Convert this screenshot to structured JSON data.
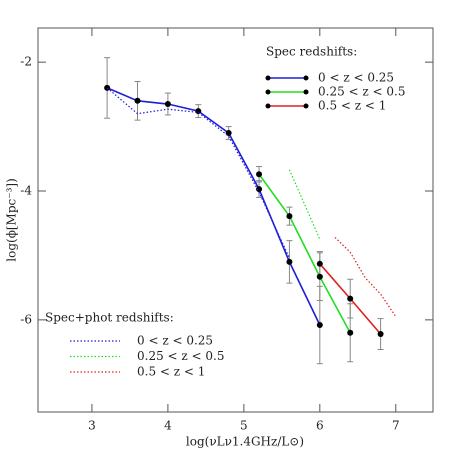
{
  "chart_data": {
    "type": "line",
    "x_label": "log(νLν1.4GHz/L⊙)",
    "y_label": "log(ϕ[Mpc⁻³])",
    "xlim": [
      2.29,
      7.49
    ],
    "ylim": [
      -7.43,
      -1.47
    ],
    "xticks": [
      3,
      4,
      5,
      6,
      7
    ],
    "yticks": [
      -6,
      -4,
      -2
    ],
    "legend_titles": [
      "Spec redshifts:",
      "Spec+phot redshifts:"
    ],
    "series": [
      {
        "name": "0 < z < 0.25",
        "color": "#1f1fd6",
        "style": "solid",
        "legend": 0,
        "x": [
          3.2,
          3.6,
          4.0,
          4.4,
          4.8,
          5.2,
          5.6,
          6.0
        ],
        "values": [
          -2.4,
          -2.6,
          -2.65,
          -2.76,
          -3.1,
          -3.97,
          -5.1,
          -6.08
        ],
        "errors": [
          0.47,
          0.3,
          0.17,
          0.1,
          0.1,
          0.13,
          0.33,
          0.6
        ]
      },
      {
        "name": "0.25 < z < 0.5",
        "color": "#22dd22",
        "style": "solid",
        "legend": 0,
        "x": [
          5.2,
          5.6,
          6.0,
          6.4
        ],
        "values": [
          -3.74,
          -4.39,
          -5.33,
          -6.2
        ],
        "errors": [
          0.12,
          0.14,
          0.37,
          0.45
        ]
      },
      {
        "name": "0.5 < z < 1",
        "color": "#e02020",
        "style": "solid",
        "legend": 0,
        "x": [
          6.0,
          6.4,
          6.8
        ],
        "values": [
          -5.13,
          -5.67,
          -6.22
        ],
        "errors": [
          0.19,
          0.3,
          0.24
        ]
      },
      {
        "name": "0 < z < 0.25",
        "color": "#1f1fd6",
        "style": "dotted",
        "legend": 1,
        "x": [
          3.2,
          3.6,
          4.0,
          4.4,
          4.8,
          5.2,
          5.6
        ],
        "values": [
          -2.4,
          -2.8,
          -2.73,
          -2.78,
          -3.15,
          -4.02,
          -5.04
        ]
      },
      {
        "name": "0.25 < z < 0.5",
        "color": "#22dd22",
        "style": "dotted",
        "legend": 1,
        "x": [
          5.6,
          6.0
        ],
        "values": [
          -3.67,
          -4.75
        ]
      },
      {
        "name": "0.5 < z < 1",
        "color": "#e02020",
        "style": "dotted",
        "legend": 1,
        "x": [
          6.2,
          6.4,
          6.6,
          6.8,
          7.0
        ],
        "values": [
          -4.72,
          -4.95,
          -5.35,
          -5.6,
          -5.95
        ]
      }
    ]
  }
}
